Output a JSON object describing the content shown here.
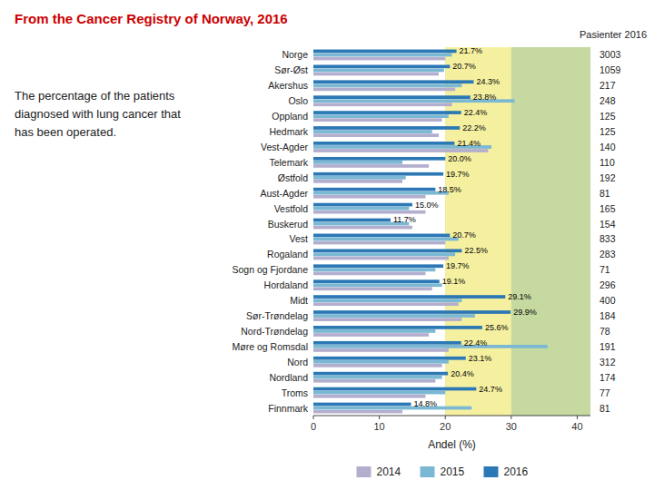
{
  "chart_data": {
    "type": "bar",
    "orientation": "horizontal",
    "title": "From the Cancer Registry of Norway, 2016",
    "subtitle": "The percentage of the patients\ndiagnosed with lung cancer that\nhas been operated.",
    "xlabel": "Andel (%)",
    "categories": [
      "Norge",
      "Sør-Øst",
      "Akershus",
      "Oslo",
      "Oppland",
      "Hedmark",
      "Vest-Agder",
      "Telemark",
      "Østfold",
      "Aust-Agder",
      "Vestfold",
      "Buskerud",
      "Vest",
      "Rogaland",
      "Sogn og Fjordane",
      "Hordaland",
      "Midt",
      "Sør-Trøndelag",
      "Nord-Trøndelag",
      "Møre og Romsdal",
      "Nord",
      "Nordland",
      "Troms",
      "Finnmark"
    ],
    "series": [
      {
        "name": "2014",
        "color": "#b3aece",
        "values": [
          20.0,
          19.0,
          21.5,
          21.0,
          19.5,
          19.0,
          26.5,
          17.5,
          13.5,
          17.0,
          17.0,
          15.0,
          20.0,
          20.5,
          17.0,
          18.0,
          22.0,
          22.5,
          17.5,
          20.5,
          19.5,
          18.5,
          17.0,
          13.5
        ]
      },
      {
        "name": "2015",
        "color": "#7ab8d4",
        "values": [
          21.0,
          19.8,
          22.5,
          30.5,
          20.5,
          18.0,
          27.0,
          13.5,
          14.0,
          20.5,
          14.5,
          14.5,
          22.0,
          21.5,
          18.5,
          19.5,
          22.5,
          24.5,
          18.5,
          35.5,
          20.5,
          19.5,
          20.0,
          24.0
        ]
      },
      {
        "name": "2016",
        "color": "#2b78b5",
        "data_labels": true,
        "values": [
          21.7,
          20.7,
          24.3,
          23.8,
          22.4,
          22.2,
          21.4,
          20.0,
          19.7,
          18.5,
          15.0,
          11.7,
          20.7,
          22.5,
          19.7,
          19.1,
          29.1,
          29.9,
          25.6,
          22.4,
          23.1,
          20.4,
          24.7,
          14.8
        ],
        "value_labels": [
          "21.7%",
          "20.7%",
          "24.3%",
          "23.8%",
          "22.4%",
          "22.2%",
          "21.4%",
          "20.0%",
          "19.7%",
          "18.5%",
          "15.0%",
          "11.7%",
          "20.7%",
          "22.5%",
          "19.7%",
          "19.1%",
          "29.1%",
          "29.9%",
          "25.6%",
          "22.4%",
          "23.1%",
          "20.4%",
          "24.7%",
          "14.8%"
        ]
      }
    ],
    "patients": {
      "title": "Pasienter 2016",
      "values": [
        3003,
        1059,
        217,
        248,
        125,
        125,
        140,
        110,
        192,
        81,
        165,
        154,
        833,
        283,
        71,
        296,
        400,
        184,
        78,
        191,
        312,
        174,
        77,
        81
      ]
    },
    "bands": [
      {
        "from": 20,
        "to": 42,
        "color": "#c5d9a0"
      },
      {
        "from": 20,
        "to": 30,
        "color": "#f5f0a0"
      }
    ],
    "xlim": [
      0,
      42
    ],
    "xticks": [
      0,
      10,
      20,
      30,
      40
    ],
    "grid": false,
    "legend": "bottom"
  }
}
